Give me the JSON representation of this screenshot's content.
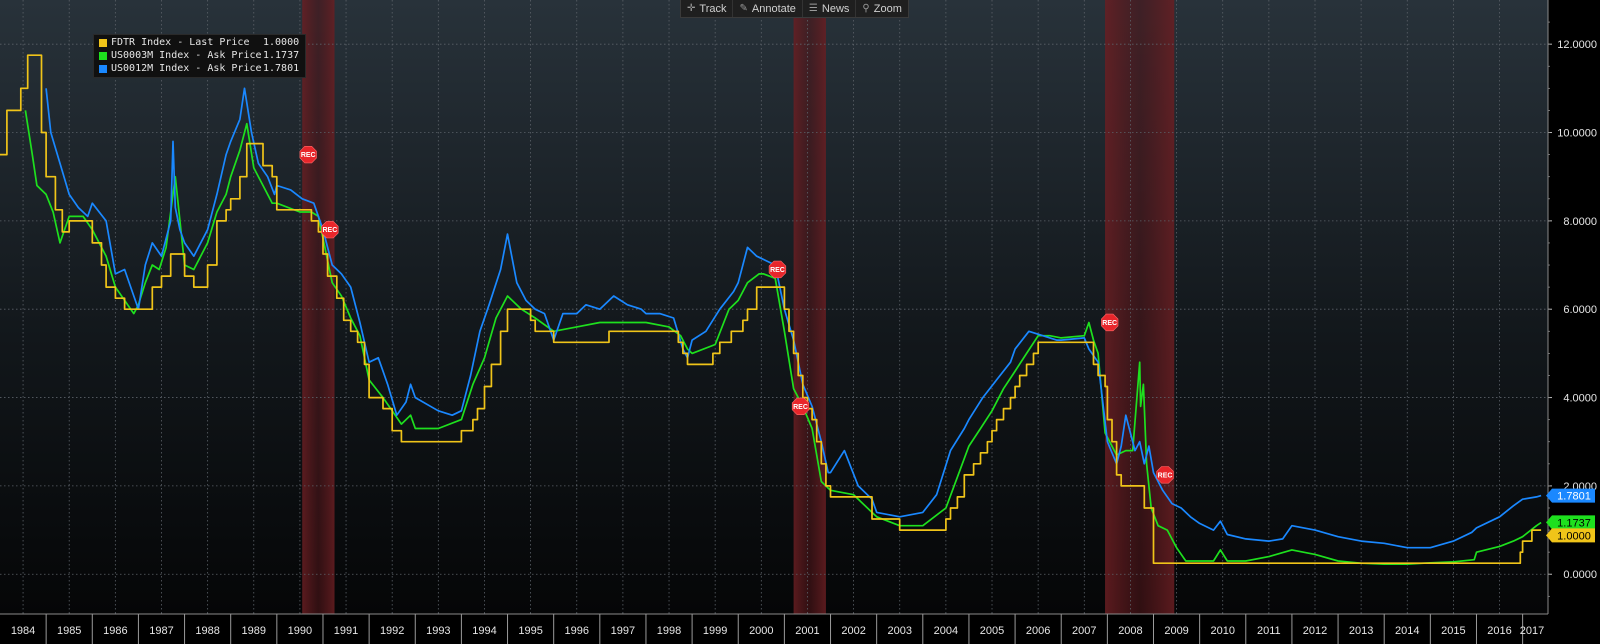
{
  "toolbar": {
    "track_label": "Track",
    "annotate_label": "Annotate",
    "news_label": "News",
    "zoom_label": "Zoom",
    "track_icon": "crosshair-icon",
    "annotate_icon": "pencil-icon",
    "news_icon": "news-icon",
    "zoom_icon": "magnifier-icon"
  },
  "legend": [
    {
      "name": "FDTR Index - Last Price",
      "value": "1.0000",
      "color": "#f0c419"
    },
    {
      "name": "US0003M Index - Ask Price",
      "value": "1.1737",
      "color": "#1ee01e"
    },
    {
      "name": "US0012M Index - Ask Price",
      "value": "1.7801",
      "color": "#1a88ff"
    }
  ],
  "chart_data": {
    "type": "line",
    "xlim": [
      1984.0,
      2017.55
    ],
    "ylim": [
      -0.9,
      13.0
    ],
    "grid": true,
    "legend_position": "top-left",
    "y_ticks": [
      "0.0000",
      "2.0000",
      "4.0000",
      "6.0000",
      "8.0000",
      "10.0000",
      "12.0000"
    ],
    "x_ticks": [
      "1984",
      "1985",
      "1986",
      "1987",
      "1988",
      "1989",
      "1990",
      "1991",
      "1992",
      "1993",
      "1994",
      "1995",
      "1996",
      "1997",
      "1998",
      "1999",
      "2000",
      "2001",
      "2002",
      "2003",
      "2004",
      "2005",
      "2006",
      "2007",
      "2008",
      "2009",
      "2010",
      "2011",
      "2012",
      "2013",
      "2014",
      "2015",
      "2016",
      "2017"
    ],
    "recessions": [
      [
        1990.55,
        1991.25
      ],
      [
        2001.2,
        2001.9
      ],
      [
        2007.95,
        2009.45
      ]
    ],
    "recession_marker": "REC",
    "rec_markers": [
      [
        1990.68,
        9.5
      ],
      [
        1991.15,
        7.8
      ],
      [
        2000.85,
        6.9
      ],
      [
        2001.35,
        3.8
      ],
      [
        2008.05,
        5.7
      ],
      [
        2009.25,
        2.25
      ]
    ],
    "last_labels": [
      {
        "text": "1.7801",
        "value": 1.7801,
        "bg": "#1a88ff",
        "fg": "#ffffff"
      },
      {
        "text": "1.1737",
        "value": 1.1737,
        "bg": "#1ee01e",
        "fg": "#000000"
      },
      {
        "text": "1.0000",
        "value": 1.0,
        "bg": "#f0c419",
        "fg": "#000000"
      }
    ],
    "series": [
      {
        "name": "FDTR Index - Last Price",
        "color": "#f0c419",
        "step": true,
        "x": [
          1984.0,
          1984.15,
          1984.45,
          1984.6,
          1984.9,
          1985.0,
          1985.2,
          1985.35,
          1985.5,
          1985.8,
          1986.0,
          1986.2,
          1986.3,
          1986.5,
          1986.7,
          1986.9,
          1987.0,
          1987.3,
          1987.5,
          1987.7,
          1988.0,
          1988.2,
          1988.5,
          1988.7,
          1988.9,
          1989.0,
          1989.2,
          1989.35,
          1989.5,
          1989.7,
          1989.9,
          1990.0,
          1990.5,
          1990.75,
          1990.9,
          1991.0,
          1991.1,
          1991.3,
          1991.45,
          1991.6,
          1991.75,
          1991.9,
          1992.0,
          1992.3,
          1992.5,
          1992.7,
          1993.0,
          1994.0,
          1994.25,
          1994.35,
          1994.5,
          1994.65,
          1994.85,
          1995.0,
          1995.5,
          1995.6,
          1996.0,
          1996.5,
          1997.0,
          1997.2,
          1998.0,
          1998.7,
          1998.8,
          1998.9,
          1999.0,
          1999.45,
          1999.6,
          1999.85,
          2000.0,
          2000.1,
          2000.2,
          2000.4,
          2001.0,
          2001.1,
          2001.2,
          2001.3,
          2001.4,
          2001.5,
          2001.6,
          2001.7,
          2001.8,
          2001.9,
          2002.0,
          2002.9,
          2003.0,
          2003.5,
          2004.0,
          2004.5,
          2004.6,
          2004.75,
          2004.9,
          2005.0,
          2005.1,
          2005.25,
          2005.4,
          2005.5,
          2005.6,
          2005.75,
          2005.9,
          2006.0,
          2006.1,
          2006.25,
          2006.4,
          2006.5,
          2007.0,
          2007.7,
          2007.8,
          2007.95,
          2008.0,
          2008.1,
          2008.2,
          2008.3,
          2008.8,
          2009.0,
          2015.95,
          2016.95,
          2017.0,
          2017.2,
          2017.4
        ],
        "y": [
          9.5,
          10.5,
          11.0,
          11.75,
          10.0,
          9.0,
          8.25,
          7.75,
          8.0,
          8.0,
          7.5,
          7.0,
          6.5,
          6.25,
          6.0,
          6.0,
          6.0,
          6.5,
          6.75,
          7.25,
          6.75,
          6.5,
          7.0,
          8.0,
          8.25,
          8.5,
          9.0,
          9.75,
          9.75,
          9.25,
          9.0,
          8.25,
          8.25,
          8.0,
          7.75,
          7.25,
          6.75,
          6.25,
          5.75,
          5.5,
          5.25,
          4.75,
          4.0,
          3.75,
          3.25,
          3.0,
          3.0,
          3.25,
          3.5,
          3.75,
          4.25,
          4.75,
          5.5,
          6.0,
          5.75,
          5.5,
          5.25,
          5.25,
          5.25,
          5.5,
          5.5,
          5.25,
          5.0,
          4.75,
          4.75,
          5.0,
          5.25,
          5.5,
          5.5,
          5.75,
          6.0,
          6.5,
          6.0,
          5.5,
          5.0,
          4.5,
          4.0,
          3.75,
          3.5,
          3.0,
          2.5,
          2.0,
          1.75,
          1.25,
          1.25,
          1.0,
          1.0,
          1.25,
          1.5,
          1.75,
          2.25,
          2.25,
          2.5,
          2.75,
          3.0,
          3.25,
          3.5,
          3.75,
          4.0,
          4.25,
          4.5,
          4.75,
          5.0,
          5.25,
          5.25,
          4.75,
          4.5,
          4.25,
          3.5,
          3.0,
          2.25,
          2.0,
          1.5,
          0.25,
          0.25,
          0.5,
          0.75,
          1.0,
          1.0
        ]
      },
      {
        "name": "US0003M Index - Ask Price",
        "color": "#1ee01e",
        "step": false,
        "x": [
          1984.55,
          1984.7,
          1984.8,
          1985.0,
          1985.15,
          1985.3,
          1985.5,
          1985.8,
          1986.0,
          1986.3,
          1986.5,
          1986.7,
          1986.9,
          1987.0,
          1987.15,
          1987.3,
          1987.45,
          1987.6,
          1987.8,
          1988.0,
          1988.2,
          1988.5,
          1988.7,
          1988.9,
          1989.0,
          1989.2,
          1989.35,
          1989.5,
          1989.7,
          1989.9,
          1990.0,
          1990.5,
          1990.75,
          1990.9,
          1991.0,
          1991.2,
          1991.4,
          1991.6,
          1991.8,
          1992.0,
          1992.3,
          1992.5,
          1992.7,
          1992.9,
          1993.0,
          1993.5,
          1994.0,
          1994.25,
          1994.5,
          1994.75,
          1995.0,
          1995.3,
          1995.6,
          1996.0,
          1996.5,
          1997.0,
          1997.5,
          1998.0,
          1998.5,
          1998.75,
          1998.9,
          1999.0,
          1999.5,
          1999.8,
          2000.0,
          2000.2,
          2000.45,
          2000.55,
          2000.8,
          2001.0,
          2001.2,
          2001.4,
          2001.6,
          2001.8,
          2001.95,
          2002.0,
          2002.5,
          2002.9,
          2003.0,
          2003.5,
          2004.0,
          2004.5,
          2004.75,
          2005.0,
          2005.25,
          2005.5,
          2005.75,
          2006.0,
          2006.25,
          2006.5,
          2006.75,
          2007.0,
          2007.5,
          2007.6,
          2007.7,
          2007.8,
          2007.95,
          2008.05,
          2008.2,
          2008.4,
          2008.55,
          2008.7,
          2008.72,
          2008.78,
          2008.85,
          2008.95,
          2009.1,
          2009.3,
          2009.5,
          2009.7,
          2009.9,
          2010.3,
          2010.45,
          2010.6,
          2011.0,
          2011.5,
          2012.0,
          2012.5,
          2013.0,
          2013.5,
          2014.0,
          2014.5,
          2015.0,
          2015.5,
          2015.95,
          2016.0,
          2016.5,
          2016.8,
          2017.0,
          2017.3,
          2017.4
        ],
        "y": [
          10.5,
          9.5,
          8.8,
          8.6,
          8.2,
          7.5,
          8.1,
          8.1,
          7.8,
          7.2,
          6.5,
          6.2,
          5.9,
          6.1,
          6.6,
          7.0,
          6.9,
          7.4,
          9.0,
          7.0,
          6.9,
          7.5,
          8.2,
          8.6,
          9.0,
          9.6,
          10.2,
          9.2,
          8.8,
          8.4,
          8.4,
          8.2,
          8.2,
          8.1,
          7.6,
          6.6,
          6.3,
          5.8,
          5.4,
          4.4,
          4.0,
          3.7,
          3.4,
          3.6,
          3.3,
          3.3,
          3.5,
          4.3,
          4.9,
          5.8,
          6.3,
          6.0,
          5.8,
          5.5,
          5.6,
          5.7,
          5.7,
          5.7,
          5.6,
          5.4,
          5.1,
          5.0,
          5.2,
          6.0,
          6.2,
          6.6,
          6.8,
          6.8,
          6.7,
          5.5,
          4.2,
          3.8,
          3.3,
          2.1,
          1.95,
          1.9,
          1.8,
          1.4,
          1.3,
          1.1,
          1.1,
          1.5,
          2.2,
          2.9,
          3.3,
          3.7,
          4.2,
          4.6,
          5.0,
          5.4,
          5.4,
          5.35,
          5.4,
          5.7,
          5.3,
          5.0,
          3.2,
          3.0,
          2.7,
          2.8,
          2.8,
          4.8,
          3.8,
          4.3,
          2.5,
          1.5,
          1.1,
          1.0,
          0.6,
          0.3,
          0.3,
          0.3,
          0.55,
          0.3,
          0.3,
          0.4,
          0.55,
          0.45,
          0.3,
          0.25,
          0.23,
          0.23,
          0.26,
          0.28,
          0.33,
          0.5,
          0.63,
          0.75,
          0.85,
          1.1,
          1.17
        ]
      },
      {
        "name": "US0012M Index - Ask Price",
        "color": "#1a88ff",
        "step": false,
        "x": [
          1985.0,
          1985.1,
          1985.3,
          1985.5,
          1985.7,
          1985.9,
          1986.0,
          1986.3,
          1986.5,
          1986.7,
          1986.9,
          1987.0,
          1987.15,
          1987.3,
          1987.5,
          1987.7,
          1987.75,
          1987.8,
          1987.9,
          1988.0,
          1988.2,
          1988.5,
          1988.7,
          1988.9,
          1989.0,
          1989.2,
          1989.3,
          1989.45,
          1989.6,
          1989.8,
          1989.95,
          1990.0,
          1990.3,
          1990.55,
          1990.8,
          1991.0,
          1991.2,
          1991.4,
          1991.6,
          1991.8,
          1992.0,
          1992.2,
          1992.4,
          1992.6,
          1992.8,
          1992.9,
          1993.0,
          1993.5,
          1993.8,
          1994.0,
          1994.2,
          1994.4,
          1994.6,
          1994.85,
          1995.0,
          1995.2,
          1995.4,
          1995.6,
          1995.8,
          1996.0,
          1996.2,
          1996.5,
          1996.7,
          1997.0,
          1997.3,
          1997.6,
          1997.9,
          1998.0,
          1998.3,
          1998.6,
          1998.8,
          1998.9,
          1999.0,
          1999.3,
          1999.6,
          1999.9,
          2000.0,
          2000.2,
          2000.4,
          2000.6,
          2000.8,
          2001.0,
          2001.2,
          2001.4,
          2001.6,
          2001.8,
          2001.95,
          2002.0,
          2002.3,
          2002.6,
          2002.9,
          2003.0,
          2003.5,
          2004.0,
          2004.3,
          2004.6,
          2004.9,
          2005.0,
          2005.3,
          2005.6,
          2005.9,
          2006.0,
          2006.3,
          2006.6,
          2006.9,
          2007.0,
          2007.5,
          2007.6,
          2007.8,
          2008.0,
          2008.2,
          2008.3,
          2008.4,
          2008.5,
          2008.6,
          2008.7,
          2008.8,
          2008.9,
          2009.0,
          2009.2,
          2009.4,
          2009.6,
          2009.8,
          2010.0,
          2010.3,
          2010.45,
          2010.6,
          2011.0,
          2011.5,
          2011.8,
          2012.0,
          2012.5,
          2013.0,
          2013.5,
          2014.0,
          2014.5,
          2015.0,
          2015.5,
          2015.9,
          2016.0,
          2016.5,
          2016.8,
          2017.0,
          2017.3,
          2017.4
        ],
        "y": [
          11.0,
          10.0,
          9.3,
          8.6,
          8.3,
          8.1,
          8.4,
          8.0,
          6.8,
          6.9,
          6.3,
          6.0,
          7.0,
          7.5,
          7.2,
          8.0,
          9.8,
          8.3,
          7.8,
          7.5,
          7.2,
          7.8,
          8.6,
          9.5,
          9.8,
          10.3,
          11.0,
          10.0,
          9.3,
          9.0,
          8.6,
          8.8,
          8.7,
          8.5,
          8.4,
          7.8,
          7.0,
          6.8,
          6.5,
          5.7,
          4.8,
          4.9,
          4.3,
          3.6,
          3.9,
          4.3,
          4.0,
          3.7,
          3.6,
          3.7,
          4.5,
          5.5,
          6.1,
          6.9,
          7.7,
          6.6,
          6.2,
          6.0,
          5.9,
          5.3,
          5.9,
          5.9,
          6.1,
          6.0,
          6.3,
          6.1,
          6.0,
          5.9,
          5.9,
          5.8,
          5.1,
          4.9,
          5.3,
          5.5,
          6.0,
          6.4,
          6.6,
          7.4,
          7.2,
          7.1,
          7.0,
          6.0,
          5.3,
          4.3,
          3.8,
          3.0,
          2.3,
          2.3,
          2.8,
          2.0,
          1.7,
          1.4,
          1.3,
          1.4,
          1.8,
          2.8,
          3.3,
          3.5,
          4.0,
          4.4,
          4.8,
          5.1,
          5.5,
          5.4,
          5.3,
          5.3,
          5.35,
          5.1,
          4.8,
          3.0,
          2.5,
          2.9,
          3.6,
          3.2,
          2.8,
          3.0,
          2.5,
          2.9,
          2.3,
          1.9,
          1.6,
          1.5,
          1.3,
          1.15,
          1.0,
          1.2,
          0.9,
          0.8,
          0.75,
          0.8,
          1.1,
          1.0,
          0.85,
          0.75,
          0.7,
          0.6,
          0.6,
          0.75,
          0.95,
          1.05,
          1.3,
          1.55,
          1.7,
          1.75,
          1.78
        ]
      }
    ]
  }
}
